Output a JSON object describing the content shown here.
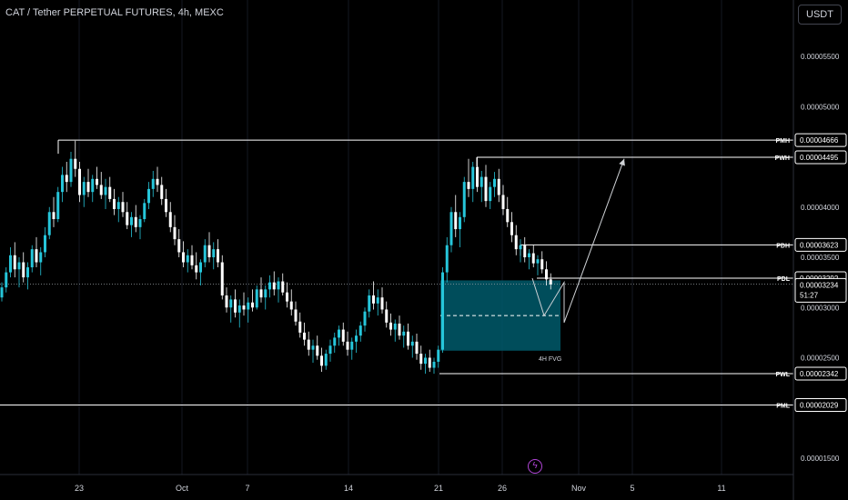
{
  "header": {
    "title": "CAT / Tether PERPETUAL FUTURES, 4h, MEXC",
    "currency_button": "USDT"
  },
  "footer": {
    "alert_icon": "lightning-icon"
  },
  "colors": {
    "bull": "#26c6da",
    "bear": "#ffffff",
    "fvg": "#005a6b",
    "line": "#ffffff",
    "grid": "#131722"
  },
  "chart_data": {
    "type": "candlestick",
    "title": "CAT / Tether PERPETUAL FUTURES, 4h, MEXC",
    "x_ticks": [
      "23",
      "Oct",
      "7",
      "14",
      "21",
      "26",
      "Nov",
      "5",
      "11"
    ],
    "y_ticks": [
      "0.00005500",
      "0.00005000",
      "0.00004000",
      "0.00003500",
      "0.00003000",
      "0.00002500",
      "0.00001500"
    ],
    "ylim": [
      1.3e-05,
      5.6e-05
    ],
    "levels": [
      {
        "label": "PMH",
        "value": "0.00004666"
      },
      {
        "label": "PWH",
        "value": "0.00004495"
      },
      {
        "label": "PDH",
        "value": "0.00003623"
      },
      {
        "label": "PDL",
        "value": "0.00003292"
      },
      {
        "label": "PWL",
        "value": "0.00002342"
      },
      {
        "label": "PML",
        "value": "0.00002029"
      }
    ],
    "last_price": "0.00003234",
    "countdown": "51:27",
    "fvg": {
      "label": "4H FVG",
      "top": 3.27e-05,
      "bottom": 2.57e-05,
      "mid": 2.92e-05
    },
    "projection": [
      [
        3.292e-05,
        "Oct 27"
      ],
      [
        2.92e-05,
        "Oct 28"
      ],
      [
        3.25e-05,
        "Oct 29"
      ],
      [
        2.85e-05,
        "Oct 29"
      ],
      [
        4.48e-05,
        "Nov 4"
      ]
    ],
    "candles": [
      [
        3.1e-05,
        3.25e-05,
        3.06e-05,
        3.2e-05
      ],
      [
        3.2e-05,
        3.4e-05,
        3.15e-05,
        3.35e-05
      ],
      [
        3.35e-05,
        3.6e-05,
        3.3e-05,
        3.52e-05
      ],
      [
        3.52e-05,
        3.65e-05,
        3.3e-05,
        3.38e-05
      ],
      [
        3.38e-05,
        3.5e-05,
        3.2e-05,
        3.45e-05
      ],
      [
        3.45e-05,
        3.55e-05,
        3.25e-05,
        3.3e-05
      ],
      [
        3.3e-05,
        3.45e-05,
        3.18e-05,
        3.4e-05
      ],
      [
        3.4e-05,
        3.62e-05,
        3.35e-05,
        3.58e-05
      ],
      [
        3.58e-05,
        3.7e-05,
        3.4e-05,
        3.45e-05
      ],
      [
        3.45e-05,
        3.6e-05,
        3.32e-05,
        3.55e-05
      ],
      [
        3.55e-05,
        3.8e-05,
        3.5e-05,
        3.72e-05
      ],
      [
        3.72e-05,
        4e-05,
        3.68e-05,
        3.95e-05
      ],
      [
        3.95e-05,
        4.1e-05,
        3.8e-05,
        3.88e-05
      ],
      [
        3.88e-05,
        4.2e-05,
        3.85e-05,
        4.15e-05
      ],
      [
        4.15e-05,
        4.4e-05,
        4.05e-05,
        4.32e-05
      ],
      [
        4.32e-05,
        4.45e-05,
        4.15e-05,
        4.25e-05
      ],
      [
        4.25e-05,
        4.55e-05,
        4.2e-05,
        4.48e-05
      ],
      [
        4.48e-05,
        4.66e-05,
        4.3e-05,
        4.38e-05
      ],
      [
        4.38e-05,
        4.45e-05,
        4.05e-05,
        4.12e-05
      ],
      [
        4.12e-05,
        4.3e-05,
        4e-05,
        4.25e-05
      ],
      [
        4.25e-05,
        4.38e-05,
        4.1e-05,
        4.15e-05
      ],
      [
        4.15e-05,
        4.32e-05,
        4.05e-05,
        4.28e-05
      ],
      [
        4.28e-05,
        4.4e-05,
        4.18e-05,
        4.22e-05
      ],
      [
        4.22e-05,
        4.35e-05,
        4.08e-05,
        4.12e-05
      ],
      [
        4.12e-05,
        4.28e-05,
        3.98e-05,
        4.2e-05
      ],
      [
        4.2e-05,
        4.3e-05,
        4.05e-05,
        4.08e-05
      ],
      [
        4.08e-05,
        4.18e-05,
        3.92e-05,
        3.98e-05
      ],
      [
        3.98e-05,
        4.1e-05,
        3.85e-05,
        4.05e-05
      ],
      [
        4.05e-05,
        4.15e-05,
        3.9e-05,
        3.95e-05
      ],
      [
        3.95e-05,
        4.05e-05,
        3.78e-05,
        3.82e-05
      ],
      [
        3.82e-05,
        3.95e-05,
        3.7e-05,
        3.9e-05
      ],
      [
        3.9e-05,
        4.02e-05,
        3.75e-05,
        3.8e-05
      ],
      [
        3.8e-05,
        3.92e-05,
        3.68e-05,
        3.88e-05
      ],
      [
        3.88e-05,
        4.08e-05,
        3.85e-05,
        4.04e-05
      ],
      [
        4.04e-05,
        4.25e-05,
        3.98e-05,
        4.18e-05
      ],
      [
        4.18e-05,
        4.36e-05,
        4.1e-05,
        4.28e-05
      ],
      [
        4.28e-05,
        4.4e-05,
        4.15e-05,
        4.22e-05
      ],
      [
        4.22e-05,
        4.3e-05,
        4.02e-05,
        4.08e-05
      ],
      [
        4.08e-05,
        4.18e-05,
        3.9e-05,
        3.95e-05
      ],
      [
        3.95e-05,
        4.05e-05,
        3.75e-05,
        3.8e-05
      ],
      [
        3.8e-05,
        3.92e-05,
        3.62e-05,
        3.68e-05
      ],
      [
        3.68e-05,
        3.78e-05,
        3.5e-05,
        3.55e-05
      ],
      [
        3.55e-05,
        3.66e-05,
        3.4e-05,
        3.45e-05
      ],
      [
        3.45e-05,
        3.58e-05,
        3.35e-05,
        3.52e-05
      ],
      [
        3.52e-05,
        3.62e-05,
        3.38e-05,
        3.42e-05
      ],
      [
        3.42e-05,
        3.55e-05,
        3.28e-05,
        3.35e-05
      ],
      [
        3.35e-05,
        3.48e-05,
        3.22e-05,
        3.45e-05
      ],
      [
        3.45e-05,
        3.68e-05,
        3.4e-05,
        3.62e-05
      ],
      [
        3.62e-05,
        3.75e-05,
        3.45e-05,
        3.5e-05
      ],
      [
        3.5e-05,
        3.65e-05,
        3.38e-05,
        3.58e-05
      ],
      [
        3.58e-05,
        3.68e-05,
        3.4e-05,
        3.45e-05
      ],
      [
        3.45e-05,
        3.52e-05,
        3.08e-05,
        3.12e-05
      ],
      [
        3.12e-05,
        3.2e-05,
        2.95e-05,
        3e-05
      ],
      [
        3e-05,
        3.12e-05,
        2.85e-05,
        3.08e-05
      ],
      [
        3.08e-05,
        3.18e-05,
        2.9e-05,
        2.95e-05
      ],
      [
        2.95e-05,
        3.08e-05,
        2.8e-05,
        3.02e-05
      ],
      [
        3.02e-05,
        3.15e-05,
        2.92e-05,
        2.98e-05
      ],
      [
        2.98e-05,
        3.1e-05,
        2.85e-05,
        3.05e-05
      ],
      [
        3.05e-05,
        3.18e-05,
        2.96e-05,
        3e-05
      ],
      [
        3e-05,
        3.22e-05,
        2.98e-05,
        3.18e-05
      ],
      [
        3.18e-05,
        3.3e-05,
        3.05e-05,
        3.1e-05
      ],
      [
        3.1e-05,
        3.22e-05,
        2.98e-05,
        3.18e-05
      ],
      [
        3.18e-05,
        3.32e-05,
        3.1e-05,
        3.25e-05
      ],
      [
        3.25e-05,
        3.36e-05,
        3.12e-05,
        3.18e-05
      ],
      [
        3.18e-05,
        3.3e-05,
        3.05e-05,
        3.26e-05
      ],
      [
        3.26e-05,
        3.34e-05,
        3.12e-05,
        3.15e-05
      ],
      [
        3.15e-05,
        3.25e-05,
        3e-05,
        3.06e-05
      ],
      [
        3.06e-05,
        3.18e-05,
        2.92e-05,
        2.98e-05
      ],
      [
        2.98e-05,
        3.06e-05,
        2.82e-05,
        2.86e-05
      ],
      [
        2.86e-05,
        2.95e-05,
        2.7e-05,
        2.75e-05
      ],
      [
        2.75e-05,
        2.85e-05,
        2.62e-05,
        2.68e-05
      ],
      [
        2.68e-05,
        2.76e-05,
        2.52e-05,
        2.58e-05
      ],
      [
        2.58e-05,
        2.68e-05,
        2.45e-05,
        2.62e-05
      ],
      [
        2.62e-05,
        2.72e-05,
        2.48e-05,
        2.52e-05
      ],
      [
        2.52e-05,
        2.6e-05,
        2.36e-05,
        2.42e-05
      ],
      [
        2.42e-05,
        2.58e-05,
        2.38e-05,
        2.54e-05
      ],
      [
        2.54e-05,
        2.68e-05,
        2.46e-05,
        2.62e-05
      ],
      [
        2.62e-05,
        2.75e-05,
        2.55e-05,
        2.7e-05
      ],
      [
        2.7e-05,
        2.82e-05,
        2.62e-05,
        2.78e-05
      ],
      [
        2.78e-05,
        2.85e-05,
        2.62e-05,
        2.66e-05
      ],
      [
        2.66e-05,
        2.76e-05,
        2.52e-05,
        2.58e-05
      ],
      [
        2.58e-05,
        2.7e-05,
        2.48e-05,
        2.66e-05
      ],
      [
        2.66e-05,
        2.78e-05,
        2.55e-05,
        2.72e-05
      ],
      [
        2.72e-05,
        2.86e-05,
        2.66e-05,
        2.82e-05
      ],
      [
        2.82e-05,
        3e-05,
        2.76e-05,
        2.96e-05
      ],
      [
        2.96e-05,
        3.18e-05,
        2.9e-05,
        3.12e-05
      ],
      [
        3.12e-05,
        3.26e-05,
        2.98e-05,
        3.04e-05
      ],
      [
        3.04e-05,
        3.18e-05,
        2.92e-05,
        3.1e-05
      ],
      [
        3.1e-05,
        3.2e-05,
        2.94e-05,
        2.98e-05
      ],
      [
        2.98e-05,
        3.06e-05,
        2.8e-05,
        2.85e-05
      ],
      [
        2.85e-05,
        2.94e-05,
        2.72e-05,
        2.78e-05
      ],
      [
        2.78e-05,
        2.88e-05,
        2.66e-05,
        2.84e-05
      ],
      [
        2.84e-05,
        2.92e-05,
        2.68e-05,
        2.72e-05
      ],
      [
        2.72e-05,
        2.82e-05,
        2.6e-05,
        2.76e-05
      ],
      [
        2.76e-05,
        2.84e-05,
        2.58e-05,
        2.62e-05
      ],
      [
        2.62e-05,
        2.72e-05,
        2.5e-05,
        2.66e-05
      ],
      [
        2.66e-05,
        2.74e-05,
        2.48e-05,
        2.54e-05
      ],
      [
        2.54e-05,
        2.62e-05,
        2.38e-05,
        2.44e-05
      ],
      [
        2.44e-05,
        2.54e-05,
        2.34e-05,
        2.5e-05
      ],
      [
        2.5e-05,
        2.58e-05,
        2.36e-05,
        2.4e-05
      ],
      [
        2.4e-05,
        2.5e-05,
        2.34e-05,
        2.46e-05
      ],
      [
        2.46e-05,
        2.62e-05,
        2.4e-05,
        2.58e-05
      ],
      [
        2.58e-05,
        3.4e-05,
        2.55e-05,
        3.35e-05
      ],
      [
        3.35e-05,
        3.7e-05,
        3.25e-05,
        3.62e-05
      ],
      [
        3.62e-05,
        4e-05,
        3.55e-05,
        3.95e-05
      ],
      [
        3.95e-05,
        4.12e-05,
        3.7e-05,
        3.78e-05
      ],
      [
        3.78e-05,
        3.95e-05,
        3.6e-05,
        3.9e-05
      ],
      [
        3.9e-05,
        4.3e-05,
        3.85e-05,
        4.25e-05
      ],
      [
        4.25e-05,
        4.48e-05,
        4.1e-05,
        4.18e-05
      ],
      [
        4.18e-05,
        4.45e-05,
        4.05e-05,
        4.4e-05
      ],
      [
        4.4e-05,
        4.5e-05,
        4.15e-05,
        4.2e-05
      ],
      [
        4.2e-05,
        4.36e-05,
        4.05e-05,
        4.3e-05
      ],
      [
        4.3e-05,
        4.42e-05,
        4e-05,
        4.06e-05
      ],
      [
        4.06e-05,
        4.25e-05,
        3.98e-05,
        4.2e-05
      ],
      [
        4.2e-05,
        4.35e-05,
        4.1e-05,
        4.28e-05
      ],
      [
        4.28e-05,
        4.38e-05,
        4.05e-05,
        4.12e-05
      ],
      [
        4.12e-05,
        4.22e-05,
        3.92e-05,
        3.98e-05
      ],
      [
        3.98e-05,
        4.1e-05,
        3.8e-05,
        3.85e-05
      ],
      [
        3.85e-05,
        3.95e-05,
        3.65e-05,
        3.72e-05
      ],
      [
        3.72e-05,
        3.82e-05,
        3.52e-05,
        3.58e-05
      ],
      [
        3.58e-05,
        3.68e-05,
        3.45e-05,
        3.62e-05
      ],
      [
        3.62e-05,
        3.7e-05,
        3.45e-05,
        3.5e-05
      ],
      [
        3.5e-05,
        3.58e-05,
        3.38e-05,
        3.54e-05
      ],
      [
        3.54e-05,
        3.62e-05,
        3.4e-05,
        3.44e-05
      ],
      [
        3.44e-05,
        3.52e-05,
        3.32e-05,
        3.48e-05
      ],
      [
        3.48e-05,
        3.56e-05,
        3.34e-05,
        3.38e-05
      ],
      [
        3.38e-05,
        3.46e-05,
        3.22e-05,
        3.28e-05
      ],
      [
        3.28e-05,
        3.34e-05,
        3.18e-05,
        3.23e-05
      ]
    ]
  }
}
